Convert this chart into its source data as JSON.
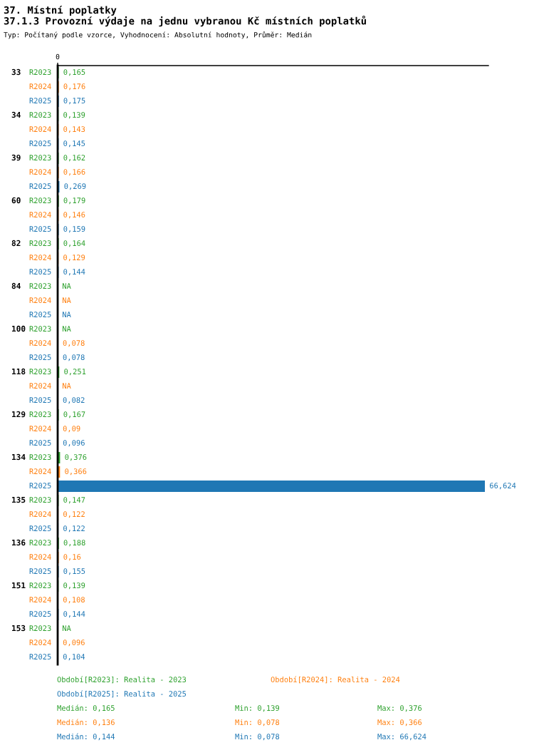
{
  "chart_data": {
    "type": "bar",
    "orientation": "horizontal",
    "title": "37. Místní poplatky",
    "subtitle": "37.1.3 Provozní výdaje na jednu vybranou Kč místních poplatků",
    "categories": [
      "33",
      "34",
      "39",
      "60",
      "82",
      "84",
      "100",
      "118",
      "129",
      "134",
      "135",
      "136",
      "151",
      "153"
    ],
    "series": [
      {
        "name": "R2023",
        "color": "#2ca02c",
        "values": [
          0.165,
          0.139,
          0.162,
          0.179,
          0.164,
          null,
          null,
          0.251,
          0.167,
          0.376,
          0.147,
          0.188,
          0.139,
          null
        ],
        "value_labels": [
          "0,165",
          "0,139",
          "0,162",
          "0,179",
          "0,164",
          "NA",
          "NA",
          "0,251",
          "0,167",
          "0,376",
          "0,147",
          "0,188",
          "0,139",
          "NA"
        ]
      },
      {
        "name": "R2024",
        "color": "#ff7f0e",
        "values": [
          0.176,
          0.143,
          0.166,
          0.146,
          0.129,
          null,
          0.078,
          null,
          0.09,
          0.366,
          0.122,
          0.16,
          0.108,
          0.096
        ],
        "value_labels": [
          "0,176",
          "0,143",
          "0,166",
          "0,146",
          "0,129",
          "NA",
          "0,078",
          "NA",
          "0,09",
          "0,366",
          "0,122",
          "0,16",
          "0,108",
          "0,096"
        ]
      },
      {
        "name": "R2025",
        "color": "#1f77b4",
        "values": [
          0.175,
          0.145,
          0.269,
          0.159,
          0.144,
          null,
          0.078,
          0.082,
          0.096,
          66.624,
          0.122,
          0.155,
          0.144,
          0.104
        ],
        "value_labels": [
          "0,175",
          "0,145",
          "0,269",
          "0,159",
          "0,144",
          "NA",
          "0,078",
          "0,082",
          "0,096",
          "66,624",
          "0,122",
          "0,155",
          "0,144",
          "0,104"
        ]
      }
    ],
    "annotations": [
      {
        "text": "0",
        "x": 0
      },
      "Typ: Počítaný podle vzorce, Vyhodnocení: Absolutní hodnoty, Průměr: Medián",
      "Období[R2023]: Realita - 2023",
      "Období[R2024]: Realita - 2024",
      "Období[R2025]: Realita - 2025",
      "Medián: 0,165",
      "Min: 0,139",
      "Max: 0,376",
      "Medián: 0,136",
      "Min: 0,078",
      "Max: 0,366",
      "Medián: 0,144",
      "Min: 0,078",
      "Max: 66,624"
    ]
  }
}
